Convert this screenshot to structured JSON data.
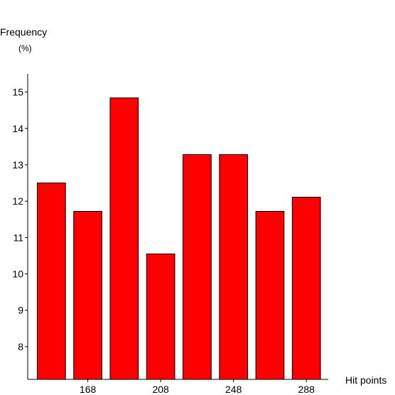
{
  "chart_data": {
    "type": "bar",
    "title": "",
    "ylabel": "Frequency",
    "yunit": "(%)",
    "xlabel": "Hit points",
    "bars": [
      {
        "x": 148,
        "value": 12.5
      },
      {
        "x": 168,
        "value": 11.72
      },
      {
        "x": 188,
        "value": 14.84
      },
      {
        "x": 208,
        "value": 10.55
      },
      {
        "x": 228,
        "value": 13.28
      },
      {
        "x": 248,
        "value": 13.28
      },
      {
        "x": 268,
        "value": 11.72
      },
      {
        "x": 288,
        "value": 12.11
      }
    ],
    "xticks": [
      168,
      208,
      248,
      288
    ],
    "yticks": [
      8,
      9,
      10,
      11,
      12,
      13,
      14,
      15
    ],
    "ylim": [
      7.1,
      15.5
    ],
    "xlim": [
      135,
      300
    ],
    "bar_color": "#ff0000",
    "edge_color": "#000000",
    "grid": false,
    "legend": false
  }
}
